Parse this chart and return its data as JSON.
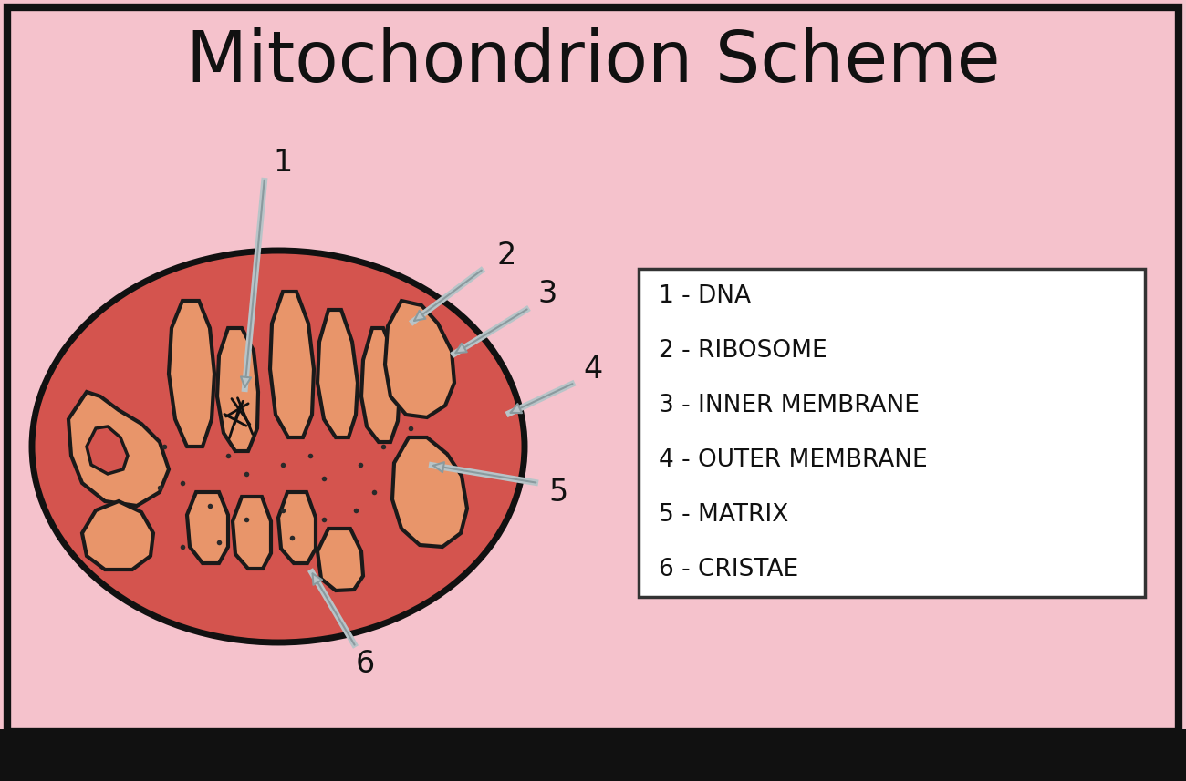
{
  "title": "Mitochondrion Scheme",
  "title_fontsize": 56,
  "bg_color": "#f5c2cc",
  "border_color": "#111111",
  "legend_entries": [
    "1 - DNA",
    "2 - RIBOSOME",
    "3 - INNER MEMBRANE",
    "4 - OUTER MEMBRANE",
    "5 - MATRIX",
    "6 - CRISTAE"
  ],
  "legend_fontsize": 19,
  "outer_fill": "#d4544e",
  "inner_fill": "#cc5a52",
  "crista_fill": "#e8956a",
  "crista_edge": "#1a1a1a",
  "matrix_fill": "#d4544e",
  "arrow_fc": "#b8c4c8",
  "arrow_ec": "#8a9a9e",
  "label_fontsize": 24
}
